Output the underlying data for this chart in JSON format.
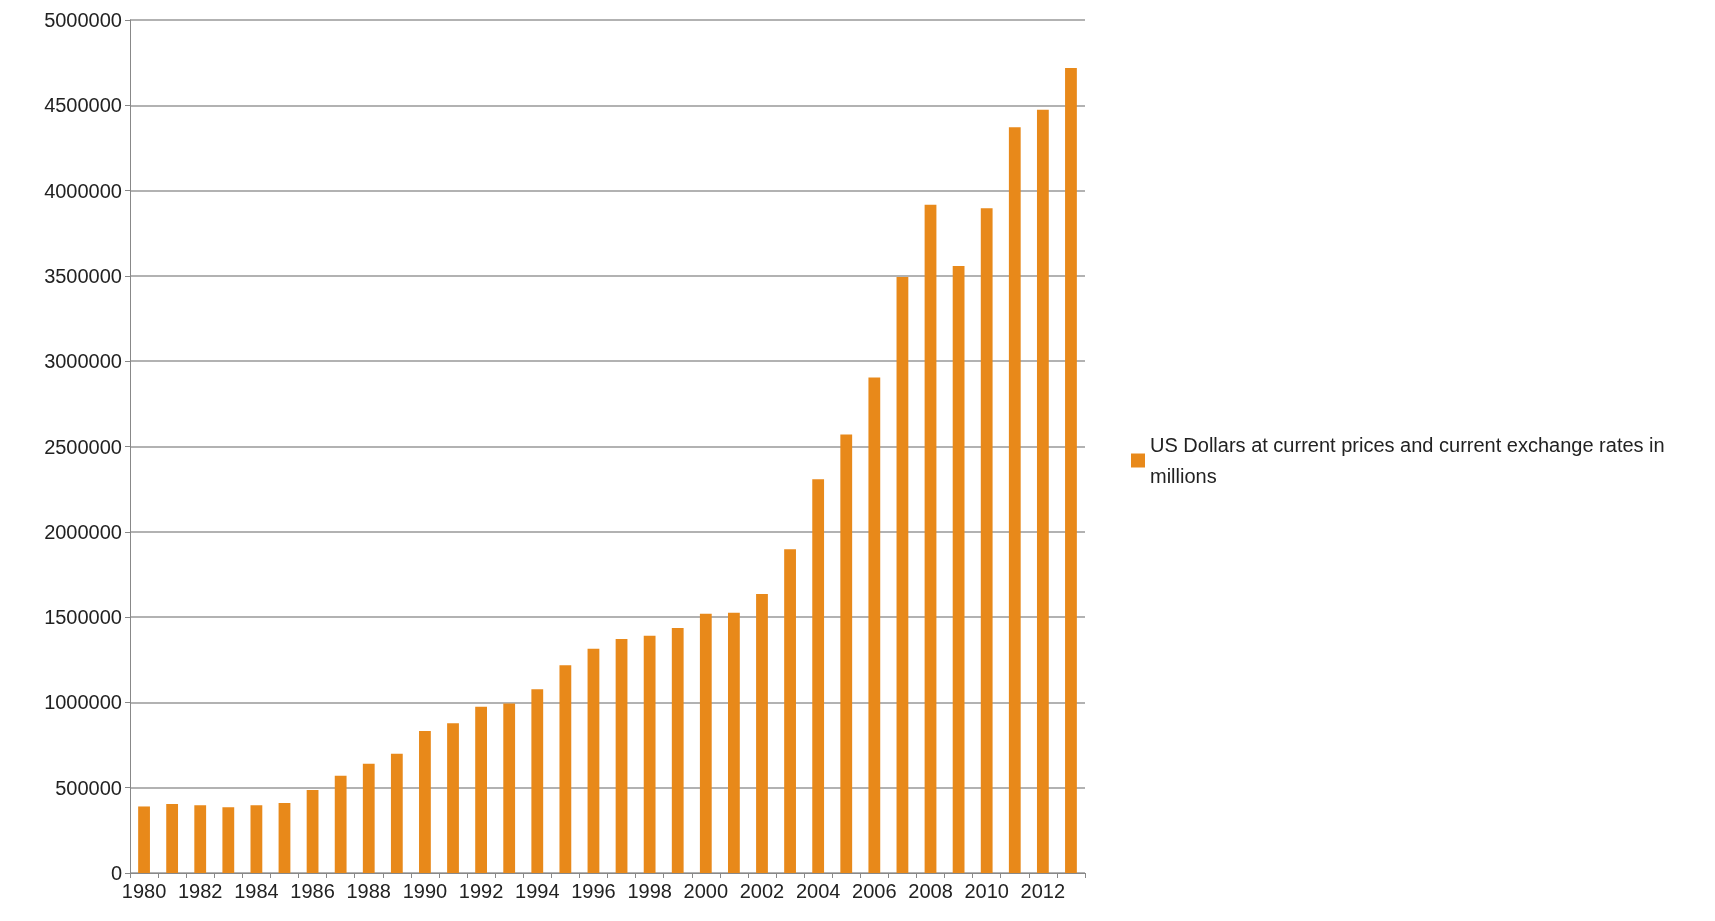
{
  "chart_data": {
    "type": "bar",
    "categories": [
      "1980",
      null,
      "1982",
      null,
      "1984",
      null,
      "1986",
      null,
      "1988",
      null,
      "1990",
      null,
      "1992",
      null,
      "1994",
      null,
      "1996",
      null,
      "1998",
      null,
      "2000",
      null,
      "2002",
      null,
      "2004",
      null,
      "2006",
      null,
      "2008",
      null,
      "2010",
      null,
      "2012",
      null
    ],
    "series": [
      {
        "name": "US Dollars at current prices and current exchange rates in millions",
        "color": "#e8891a",
        "values": [
          390000,
          404000,
          397000,
          385000,
          397000,
          410000,
          487000,
          570000,
          641000,
          699000,
          833000,
          878000,
          974000,
          994000,
          1077000,
          1218000,
          1314000,
          1372000,
          1391000,
          1436000,
          1519000,
          1525000,
          1635000,
          1897000,
          2308000,
          2571000,
          2904000,
          3494000,
          3917000,
          3558000,
          3897000,
          4372000,
          4474000,
          4718000
        ]
      }
    ],
    "ylim": [
      0,
      5000000
    ],
    "yticks": [
      0,
      500000,
      1000000,
      1500000,
      2000000,
      2500000,
      3000000,
      3500000,
      4000000,
      4500000,
      5000000
    ],
    "grid": "y",
    "legend": "right"
  }
}
